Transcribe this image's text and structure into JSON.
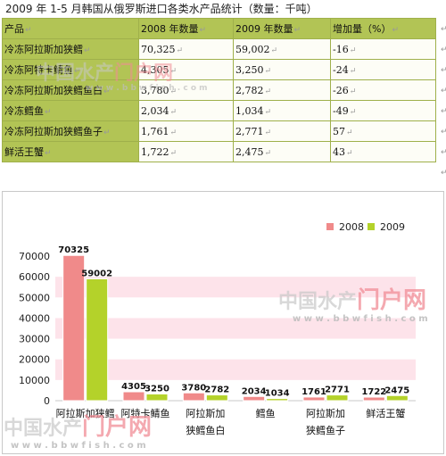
{
  "caption": "2009 年 1-5 月韩国从俄罗斯进口各类水产品统计（数量：千吨）",
  "table": {
    "headers": [
      "产品",
      "2008 年数量",
      "2009 年数量",
      "增加量（%）"
    ],
    "rows": [
      [
        "冷冻阿拉斯加狭鳕",
        "70,325",
        "59,002",
        "-16"
      ],
      [
        "冷冻阿特卡鲭鱼",
        "4,305",
        "3,250",
        "-24"
      ],
      [
        "冷冻阿拉斯加狭鳕鱼白",
        "3,780",
        "2,782",
        "-26"
      ],
      [
        "冷冻鳕鱼",
        "2,034",
        "1,034",
        "-49"
      ],
      [
        "冷冻阿拉斯加狭鳕鱼子",
        "1,761",
        "2,771",
        "57"
      ],
      [
        "鲜活王蟹",
        "1,722",
        "2,475",
        "43"
      ]
    ],
    "cell_mark": "↵"
  },
  "watermark": {
    "brand_a": "中国水产",
    "brand_b": "门户网",
    "url": "w w w . b b w f i s h . c o m"
  },
  "colors": {
    "s2008": "#f08a8a",
    "s2009": "#b4d22a",
    "band": "#fde3ea",
    "table_header": "#b2c455"
  },
  "chart_data": {
    "type": "bar",
    "categories": [
      "阿拉斯加狭鳕",
      "阿特卡鲭鱼",
      "阿拉斯加狭鳕鱼白",
      "鳕鱼",
      "阿拉斯加狭鳕鱼子",
      "鲜活王蟹"
    ],
    "category_lines": [
      [
        "阿拉斯加狭鳕"
      ],
      [
        "阿特卡鲭鱼"
      ],
      [
        "阿拉斯加",
        "狭鳕鱼白"
      ],
      [
        "鳕鱼"
      ],
      [
        "阿拉斯加",
        "狭鳕鱼子"
      ],
      [
        "鲜活王蟹"
      ]
    ],
    "series": [
      {
        "name": "2008",
        "values": [
          70325,
          4305,
          3780,
          2034,
          1761,
          1722
        ]
      },
      {
        "name": "2009",
        "values": [
          59002,
          3250,
          2782,
          1034,
          2771,
          2475
        ]
      }
    ],
    "ylim": [
      0,
      70000
    ],
    "yticks": [
      0,
      10000,
      20000,
      30000,
      40000,
      50000,
      60000,
      70000
    ],
    "legend": "top-right",
    "grid": "alternating bands"
  }
}
